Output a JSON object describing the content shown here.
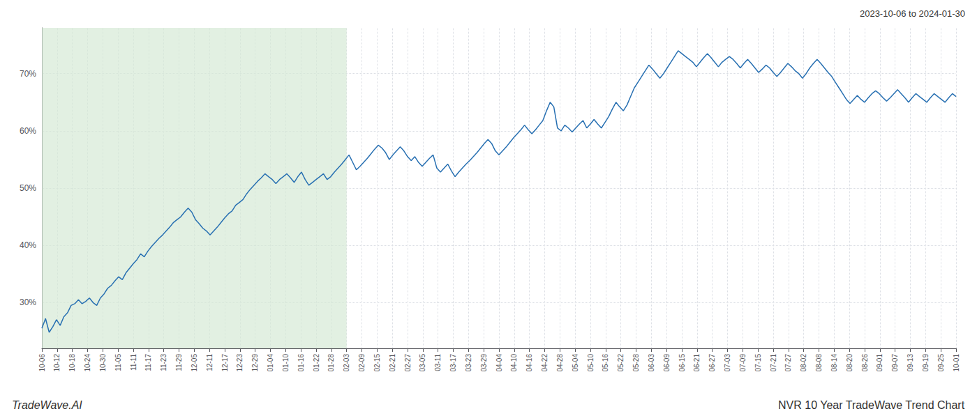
{
  "chart_data": {
    "type": "line",
    "title": "NVR 10 Year TradeWave Trend Chart",
    "subtitle": "2023-10-06 to 2024-01-30",
    "annotations": [
      "TradeWave.AI"
    ],
    "color": "#2870b2",
    "background_color": "#ffffff",
    "grid": true,
    "shade": {
      "x": [
        0,
        20
      ],
      "color": "#d6ead6"
    },
    "xlim": [
      0,
      60
    ],
    "xticks": [
      {
        "value": 0,
        "label": "10-06"
      },
      {
        "value": 1,
        "label": "10-12"
      },
      {
        "value": 2,
        "label": "10-18"
      },
      {
        "value": 3,
        "label": "10-24"
      },
      {
        "value": 4,
        "label": "10-30"
      },
      {
        "value": 5,
        "label": "11-05"
      },
      {
        "value": 6,
        "label": "11-11"
      },
      {
        "value": 7,
        "label": "11-17"
      },
      {
        "value": 8,
        "label": "11-23"
      },
      {
        "value": 9,
        "label": "11-29"
      },
      {
        "value": 10,
        "label": "12-05"
      },
      {
        "value": 11,
        "label": "12-11"
      },
      {
        "value": 12,
        "label": "12-17"
      },
      {
        "value": 13,
        "label": "12-23"
      },
      {
        "value": 14,
        "label": "12-29"
      },
      {
        "value": 15,
        "label": "01-04"
      },
      {
        "value": 16,
        "label": "01-10"
      },
      {
        "value": 17,
        "label": "01-16"
      },
      {
        "value": 18,
        "label": "01-22"
      },
      {
        "value": 19,
        "label": "01-28"
      },
      {
        "value": 20,
        "label": "02-03"
      },
      {
        "value": 21,
        "label": "02-09"
      },
      {
        "value": 22,
        "label": "02-15"
      },
      {
        "value": 23,
        "label": "02-21"
      },
      {
        "value": 24,
        "label": "02-27"
      },
      {
        "value": 25,
        "label": "03-05"
      },
      {
        "value": 26,
        "label": "03-11"
      },
      {
        "value": 27,
        "label": "03-17"
      },
      {
        "value": 28,
        "label": "03-23"
      },
      {
        "value": 29,
        "label": "03-29"
      },
      {
        "value": 30,
        "label": "04-04"
      },
      {
        "value": 31,
        "label": "04-10"
      },
      {
        "value": 32,
        "label": "04-16"
      },
      {
        "value": 33,
        "label": "04-22"
      },
      {
        "value": 34,
        "label": "04-28"
      },
      {
        "value": 35,
        "label": "05-04"
      },
      {
        "value": 36,
        "label": "05-10"
      },
      {
        "value": 37,
        "label": "05-16"
      },
      {
        "value": 38,
        "label": "05-22"
      },
      {
        "value": 39,
        "label": "05-28"
      },
      {
        "value": 40,
        "label": "06-03"
      },
      {
        "value": 41,
        "label": "06-09"
      },
      {
        "value": 42,
        "label": "06-15"
      },
      {
        "value": 43,
        "label": "06-21"
      },
      {
        "value": 44,
        "label": "06-27"
      },
      {
        "value": 45,
        "label": "07-03"
      },
      {
        "value": 46,
        "label": "07-09"
      },
      {
        "value": 47,
        "label": "07-15"
      },
      {
        "value": 48,
        "label": "07-21"
      },
      {
        "value": 49,
        "label": "07-27"
      },
      {
        "value": 50,
        "label": "08-02"
      },
      {
        "value": 51,
        "label": "08-08"
      },
      {
        "value": 52,
        "label": "08-14"
      },
      {
        "value": 53,
        "label": "08-20"
      },
      {
        "value": 54,
        "label": "08-26"
      },
      {
        "value": 55,
        "label": "09-01"
      },
      {
        "value": 56,
        "label": "09-07"
      },
      {
        "value": 57,
        "label": "09-13"
      },
      {
        "value": 58,
        "label": "09-19"
      },
      {
        "value": 59,
        "label": "09-25"
      },
      {
        "value": 60,
        "label": "10-01"
      }
    ],
    "ylim": [
      22,
      78
    ],
    "yticks": [
      {
        "value": 30,
        "label": "30%"
      },
      {
        "value": 40,
        "label": "40%"
      },
      {
        "value": 50,
        "label": "50%"
      },
      {
        "value": 60,
        "label": "60%"
      },
      {
        "value": 70,
        "label": "70%"
      }
    ],
    "x": [
      0,
      0.24,
      0.48,
      0.72,
      0.96,
      1.2,
      1.44,
      1.68,
      1.92,
      2.16,
      2.4,
      2.64,
      2.88,
      3.12,
      3.36,
      3.6,
      3.84,
      4.08,
      4.32,
      4.56,
      4.8,
      5.04,
      5.28,
      5.52,
      5.76,
      6,
      6.24,
      6.48,
      6.72,
      6.96,
      7.2,
      7.44,
      7.68,
      7.92,
      8.16,
      8.4,
      8.64,
      8.88,
      9.12,
      9.36,
      9.6,
      9.84,
      10.08,
      10.32,
      10.56,
      10.8,
      11.04,
      11.28,
      11.52,
      11.76,
      12,
      12.24,
      12.48,
      12.72,
      12.96,
      13.2,
      13.44,
      13.68,
      13.92,
      14.16,
      14.4,
      14.64,
      14.88,
      15.12,
      15.36,
      15.6,
      15.84,
      16.08,
      16.32,
      16.56,
      16.8,
      17.04,
      17.28,
      17.52,
      17.76,
      18,
      18.24,
      18.48,
      18.72,
      18.96,
      19.2,
      19.44,
      19.68,
      19.92,
      20.16,
      20.4,
      20.64,
      20.88,
      21.12,
      21.36,
      21.6,
      21.84,
      22.08,
      22.32,
      22.56,
      22.8,
      23.04,
      23.28,
      23.52,
      23.76,
      24,
      24.24,
      24.48,
      24.72,
      24.96,
      25.2,
      25.44,
      25.68,
      25.92,
      26.16,
      26.4,
      26.64,
      26.88,
      27.12,
      27.36,
      27.6,
      27.84,
      28.08,
      28.32,
      28.56,
      28.8,
      29.04,
      29.28,
      29.52,
      29.76,
      30,
      30.24,
      30.48,
      30.72,
      30.96,
      31.2,
      31.44,
      31.68,
      31.92,
      32.16,
      32.4,
      32.64,
      32.88,
      33.12,
      33.36,
      33.6,
      33.84,
      34.08,
      34.32,
      34.56,
      34.8,
      35.04,
      35.28,
      35.52,
      35.76,
      36,
      36.24,
      36.48,
      36.72,
      36.96,
      37.2,
      37.44,
      37.68,
      37.92,
      38.16,
      38.4,
      38.64,
      38.88,
      39.12,
      39.36,
      39.6,
      39.84,
      40.08,
      40.32,
      40.56,
      40.8,
      41.04,
      41.28,
      41.52,
      41.76,
      42,
      42.24,
      42.48,
      42.72,
      42.96,
      43.2,
      43.44,
      43.68,
      43.92,
      44.16,
      44.4,
      44.64,
      44.88,
      45.12,
      45.36,
      45.6,
      45.84,
      46.08,
      46.32,
      46.56,
      46.8,
      47.04,
      47.28,
      47.52,
      47.76,
      48,
      48.24,
      48.48,
      48.72,
      48.96,
      49.2,
      49.44,
      49.68,
      49.92,
      50.16,
      50.4,
      50.64,
      50.88,
      51.12,
      51.36,
      51.6,
      51.84,
      52.08,
      52.32,
      52.56,
      52.8,
      53.04,
      53.28,
      53.52,
      53.76,
      54,
      54.24,
      54.48,
      54.72,
      54.96,
      55.2,
      55.44,
      55.68,
      55.92,
      56.16,
      56.4,
      56.64,
      56.88,
      57.12,
      57.36,
      57.6,
      57.84,
      58.08,
      58.32,
      58.56,
      58.8,
      59.04,
      59.28,
      59.52,
      59.76,
      60
    ],
    "values": [
      25.5,
      27.2,
      24.8,
      25.8,
      27.0,
      26.0,
      27.5,
      28.2,
      29.5,
      29.8,
      30.5,
      29.8,
      30.2,
      30.8,
      30.0,
      29.5,
      30.8,
      31.5,
      32.5,
      33.0,
      33.8,
      34.5,
      34.0,
      35.2,
      36.0,
      36.8,
      37.5,
      38.5,
      38.0,
      39.0,
      39.8,
      40.5,
      41.2,
      41.8,
      42.5,
      43.2,
      44.0,
      44.5,
      45.0,
      45.8,
      46.5,
      45.8,
      44.5,
      43.8,
      43.0,
      42.5,
      41.8,
      42.5,
      43.2,
      44.0,
      44.8,
      45.5,
      46.0,
      47.0,
      47.5,
      48.0,
      49.0,
      49.8,
      50.5,
      51.2,
      51.8,
      52.5,
      52.0,
      51.5,
      50.8,
      51.5,
      52.0,
      52.5,
      51.8,
      51.0,
      52.0,
      52.8,
      51.5,
      50.5,
      51.0,
      51.5,
      52.0,
      52.5,
      51.5,
      52.0,
      52.8,
      53.5,
      54.2,
      55.0,
      55.8,
      54.5,
      53.2,
      53.8,
      54.5,
      55.2,
      56.0,
      56.8,
      57.5,
      57.0,
      56.2,
      55.0,
      55.8,
      56.5,
      57.2,
      56.5,
      55.5,
      54.8,
      55.5,
      54.5,
      53.8,
      54.5,
      55.2,
      55.8,
      53.5,
      52.8,
      53.5,
      54.2,
      53.0,
      52.0,
      52.8,
      53.5,
      54.2,
      54.8,
      55.5,
      56.2,
      57.0,
      57.8,
      58.5,
      57.8,
      56.5,
      55.8,
      56.5,
      57.2,
      58.0,
      58.8,
      59.5,
      60.2,
      61.0,
      60.2,
      59.5,
      60.2,
      61.0,
      61.8,
      63.5,
      65.0,
      64.2,
      60.5,
      60.0,
      61.0,
      60.5,
      59.8,
      60.5,
      61.2,
      61.8,
      60.5,
      61.2,
      62.0,
      61.2,
      60.5,
      61.5,
      62.5,
      63.8,
      65.0,
      64.2,
      63.5,
      64.5,
      66.0,
      67.5,
      68.5,
      69.5,
      70.5,
      71.5,
      70.8,
      70.0,
      69.2,
      70.0,
      71.0,
      72.0,
      73.0,
      74.0,
      73.5,
      73.0,
      72.5,
      72.0,
      71.2,
      72.0,
      72.8,
      73.5,
      72.8,
      72.0,
      71.2,
      72.0,
      72.5,
      73.0,
      72.5,
      71.8,
      71.0,
      71.8,
      72.5,
      71.8,
      71.0,
      70.2,
      70.8,
      71.5,
      71.0,
      70.2,
      69.5,
      70.2,
      71.0,
      71.8,
      71.2,
      70.5,
      70.0,
      69.2,
      70.0,
      71.0,
      71.8,
      72.5,
      71.8,
      71.0,
      70.2,
      69.5,
      68.5,
      67.5,
      66.5,
      65.5,
      64.8,
      65.5,
      66.2,
      65.5,
      65.0,
      65.8,
      66.5,
      67.0,
      66.5,
      65.8,
      65.2,
      65.8,
      66.5,
      67.2,
      66.5,
      65.8,
      65.0,
      65.8,
      66.5,
      66.0,
      65.5,
      65.0,
      65.8,
      66.5,
      66.0,
      65.5,
      65.0,
      65.8,
      66.5,
      66.0
    ]
  }
}
